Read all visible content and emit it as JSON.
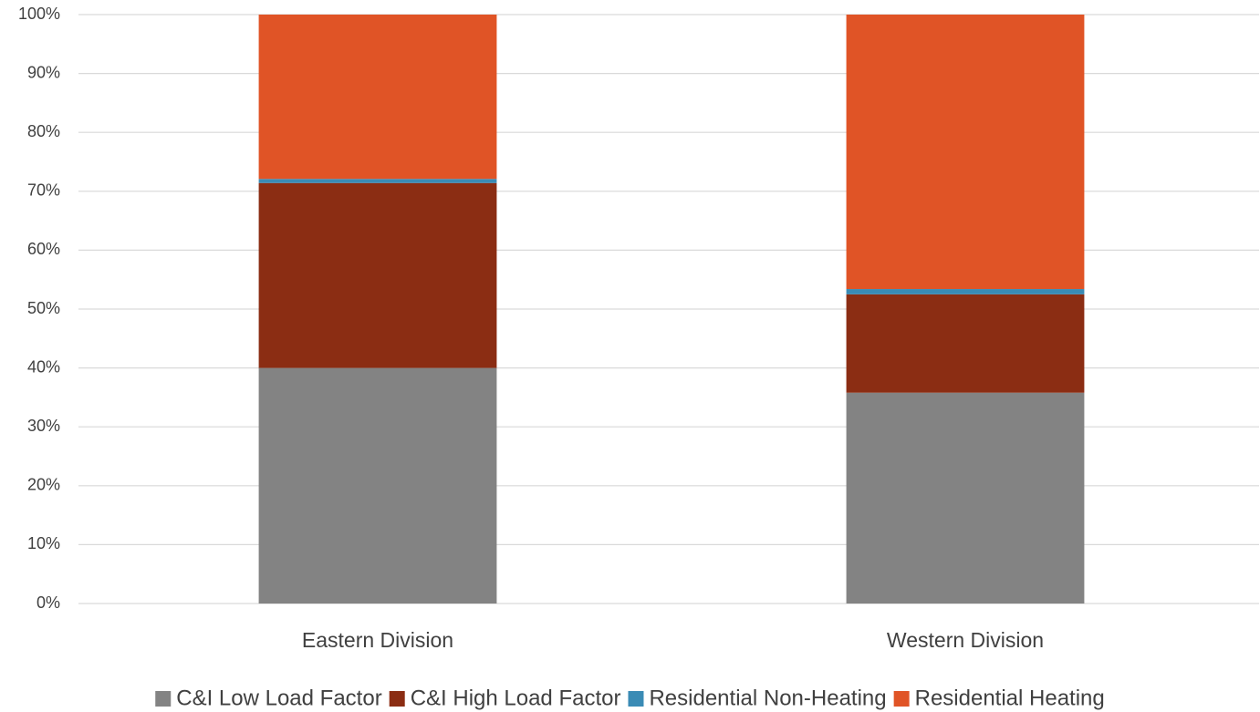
{
  "chart_data": {
    "type": "stacked_bar",
    "categories": [
      "Eastern Division",
      "Western Division"
    ],
    "series": [
      {
        "name": "C&I Low Load Factor",
        "color": "#838383",
        "values": [
          40,
          35.8
        ]
      },
      {
        "name": "C&I High Load Factor",
        "color": "#8b2d13",
        "values": [
          31.4,
          16.7
        ]
      },
      {
        "name": "Residential Non-Heating",
        "color": "#3a8bb5",
        "values": [
          0.7,
          0.9
        ]
      },
      {
        "name": "Residential Heating",
        "color": "#e05426",
        "values": [
          27.9,
          46.6
        ]
      }
    ],
    "ylim": [
      0,
      100
    ],
    "yticks": [
      {
        "value": 0,
        "label": "0%"
      },
      {
        "value": 10,
        "label": "10%"
      },
      {
        "value": 20,
        "label": "20%"
      },
      {
        "value": 30,
        "label": "30%"
      },
      {
        "value": 40,
        "label": "40%"
      },
      {
        "value": 50,
        "label": "50%"
      },
      {
        "value": 60,
        "label": "60%"
      },
      {
        "value": 70,
        "label": "70%"
      },
      {
        "value": 80,
        "label": "80%"
      },
      {
        "value": 90,
        "label": "90%"
      },
      {
        "value": 100,
        "label": "100%"
      }
    ],
    "grid": true,
    "legend": "bottom"
  }
}
